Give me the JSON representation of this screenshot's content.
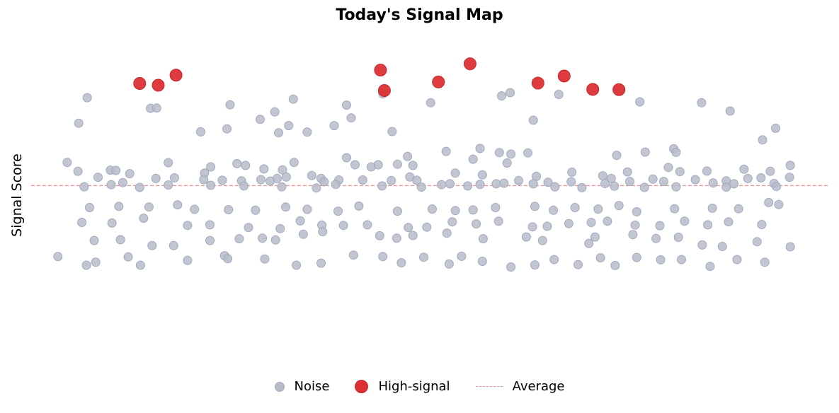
{
  "chart_data": {
    "type": "scatter",
    "title": "Today's Signal Map",
    "xlabel": "",
    "ylabel": "Signal Score",
    "xlim": [
      0,
      100
    ],
    "ylim": [
      0,
      100
    ],
    "grid": false,
    "legend_position": "bottom",
    "colors": {
      "noise": "#b7bccb",
      "high": "#dc3035",
      "average": "#e89499"
    },
    "average": 51.8,
    "series": [
      {
        "name": "Noise",
        "points": [
          [
            5.8,
            81.4
          ],
          [
            14.0,
            77.8
          ],
          [
            14.8,
            77.9
          ],
          [
            24.3,
            79.0
          ],
          [
            30.1,
            76.6
          ],
          [
            32.5,
            80.9
          ],
          [
            39.4,
            78.9
          ],
          [
            44.1,
            82.7
          ],
          [
            50.3,
            79.7
          ],
          [
            59.5,
            82.0
          ],
          [
            60.6,
            83.1
          ],
          [
            63.6,
            73.8
          ],
          [
            66.9,
            82.5
          ],
          [
            77.4,
            80.0
          ],
          [
            85.4,
            79.7
          ],
          [
            89.1,
            76.9
          ],
          [
            4.7,
            72.8
          ],
          [
            20.5,
            69.9
          ],
          [
            23.9,
            70.9
          ],
          [
            28.2,
            74.1
          ],
          [
            30.6,
            69.6
          ],
          [
            31.9,
            72.0
          ],
          [
            34.3,
            69.8
          ],
          [
            37.8,
            72.0
          ],
          [
            40.0,
            74.6
          ],
          [
            45.3,
            70.0
          ],
          [
            47.3,
            61.6
          ],
          [
            52.3,
            63.3
          ],
          [
            56.7,
            64.3
          ],
          [
            59.2,
            62.9
          ],
          [
            60.7,
            62.4
          ],
          [
            62.9,
            62.8
          ],
          [
            74.4,
            62.0
          ],
          [
            78.1,
            63.1
          ],
          [
            81.8,
            64.2
          ],
          [
            82.1,
            63.0
          ],
          [
            93.3,
            67.2
          ],
          [
            95.0,
            71.1
          ],
          [
            3.2,
            59.6
          ],
          [
            4.6,
            56.6
          ],
          [
            8.8,
            57.0
          ],
          [
            9.5,
            56.9
          ],
          [
            11.3,
            55.8
          ],
          [
            16.3,
            59.5
          ],
          [
            21.0,
            56.0
          ],
          [
            21.8,
            58.1
          ],
          [
            25.2,
            59.2
          ],
          [
            26.3,
            58.6
          ],
          [
            28.3,
            53.8
          ],
          [
            28.7,
            57.4
          ],
          [
            30.4,
            54.2
          ],
          [
            31.1,
            57.1
          ],
          [
            32.6,
            59.6
          ],
          [
            34.9,
            55.2
          ],
          [
            36.1,
            54.2
          ],
          [
            39.4,
            61.2
          ],
          [
            40.5,
            58.8
          ],
          [
            42.6,
            58.1
          ],
          [
            43.5,
            58.8
          ],
          [
            46.0,
            59.0
          ],
          [
            47.6,
            54.7
          ],
          [
            48.0,
            58.6
          ],
          [
            53.5,
            56.0
          ],
          [
            55.8,
            60.7
          ],
          [
            57.0,
            55.4
          ],
          [
            60.2,
            59.4
          ],
          [
            64.0,
            54.9
          ],
          [
            68.6,
            56.3
          ],
          [
            72.6,
            55.1
          ],
          [
            73.7,
            54.2
          ],
          [
            75.8,
            56.4
          ],
          [
            79.1,
            54.0
          ],
          [
            81.1,
            57.9
          ],
          [
            82.6,
            56.5
          ],
          [
            86.1,
            56.7
          ],
          [
            90.9,
            57.3
          ],
          [
            93.1,
            54.4
          ],
          [
            94.3,
            56.6
          ],
          [
            96.9,
            58.6
          ],
          [
            7.2,
            54.6
          ],
          [
            10.4,
            52.8
          ],
          [
            14.7,
            54.2
          ],
          [
            17.1,
            54.4
          ],
          [
            20.9,
            53.8
          ],
          [
            23.3,
            53.6
          ],
          [
            25.8,
            53.4
          ],
          [
            29.5,
            53.3
          ],
          [
            31.6,
            54.7
          ],
          [
            36.5,
            53.1
          ],
          [
            38.4,
            53.7
          ],
          [
            41.5,
            53.7
          ],
          [
            45.2,
            53.5
          ],
          [
            48.5,
            53.6
          ],
          [
            52.8,
            52.4
          ],
          [
            56.7,
            52.2
          ],
          [
            58.8,
            52.4
          ],
          [
            61.7,
            53.5
          ],
          [
            65.5,
            52.9
          ],
          [
            68.5,
            53.1
          ],
          [
            72.9,
            52.5
          ],
          [
            76.1,
            53.2
          ],
          [
            80.5,
            53.2
          ],
          [
            84.6,
            53.8
          ],
          [
            86.9,
            52.7
          ],
          [
            88.6,
            53.4
          ],
          [
            91.4,
            54.2
          ],
          [
            94.8,
            52.5
          ],
          [
            96.8,
            54.6
          ],
          [
            5.4,
            51.4
          ],
          [
            8.9,
            52.1
          ],
          [
            12.6,
            51.2
          ],
          [
            16.3,
            52.0
          ],
          [
            21.8,
            51.9
          ],
          [
            26.1,
            51.7
          ],
          [
            31.0,
            51.4
          ],
          [
            35.5,
            51.0
          ],
          [
            38.0,
            52.2
          ],
          [
            44.0,
            51.7
          ],
          [
            49.1,
            51.3
          ],
          [
            51.7,
            52.1
          ],
          [
            55.1,
            51.7
          ],
          [
            59.8,
            52.6
          ],
          [
            63.6,
            52.4
          ],
          [
            66.4,
            51.4
          ],
          [
            69.9,
            51.1
          ],
          [
            74.1,
            51.6
          ],
          [
            78.0,
            51.2
          ],
          [
            82.1,
            51.4
          ],
          [
            88.6,
            51.3
          ],
          [
            89.6,
            52.4
          ],
          [
            95.1,
            51.5
          ],
          [
            6.1,
            44.4
          ],
          [
            9.9,
            44.8
          ],
          [
            13.8,
            44.6
          ],
          [
            17.5,
            45.3
          ],
          [
            19.7,
            43.8
          ],
          [
            24.1,
            43.7
          ],
          [
            27.6,
            43.5
          ],
          [
            31.5,
            44.6
          ],
          [
            34.3,
            43.8
          ],
          [
            38.3,
            43.2
          ],
          [
            41.0,
            44.9
          ],
          [
            46.0,
            43.2
          ],
          [
            50.5,
            43.9
          ],
          [
            53.5,
            43.4
          ],
          [
            55.8,
            43.6
          ],
          [
            58.7,
            44.4
          ],
          [
            63.8,
            44.8
          ],
          [
            66.2,
            43.5
          ],
          [
            69.0,
            44.4
          ],
          [
            72.0,
            43.9
          ],
          [
            74.7,
            45.1
          ],
          [
            77.0,
            43.0
          ],
          [
            81.9,
            44.0
          ],
          [
            86.8,
            44.2
          ],
          [
            90.2,
            44.0
          ],
          [
            94.1,
            46.1
          ],
          [
            95.4,
            45.4
          ],
          [
            5.1,
            39.4
          ],
          [
            9.0,
            39.2
          ],
          [
            13.1,
            40.8
          ],
          [
            18.8,
            38.4
          ],
          [
            21.7,
            38.6
          ],
          [
            26.7,
            37.7
          ],
          [
            30.8,
            37.3
          ],
          [
            33.4,
            39.9
          ],
          [
            36.2,
            38.5
          ],
          [
            39.0,
            38.4
          ],
          [
            42.1,
            38.6
          ],
          [
            47.4,
            37.7
          ],
          [
            49.8,
            37.8
          ],
          [
            53.1,
            39.6
          ],
          [
            56.2,
            38.9
          ],
          [
            59.1,
            39.8
          ],
          [
            63.5,
            37.9
          ],
          [
            65.4,
            38.1
          ],
          [
            68.2,
            39.0
          ],
          [
            71.1,
            39.4
          ],
          [
            73.2,
            39.8
          ],
          [
            76.8,
            38.5
          ],
          [
            80.0,
            38.3
          ],
          [
            83.2,
            39.8
          ],
          [
            86.2,
            38.6
          ],
          [
            88.9,
            39.6
          ],
          [
            93.2,
            38.7
          ],
          [
            6.7,
            33.3
          ],
          [
            10.1,
            33.6
          ],
          [
            14.2,
            31.6
          ],
          [
            17.0,
            31.6
          ],
          [
            21.7,
            33.3
          ],
          [
            25.5,
            33.9
          ],
          [
            28.5,
            34.1
          ],
          [
            30.2,
            33.5
          ],
          [
            33.8,
            35.4
          ],
          [
            36.3,
            36.3
          ],
          [
            43.7,
            34.9
          ],
          [
            45.9,
            34.1
          ],
          [
            48.0,
            35.0
          ],
          [
            52.4,
            35.8
          ],
          [
            57.1,
            33.9
          ],
          [
            62.7,
            34.5
          ],
          [
            64.8,
            33.3
          ],
          [
            70.8,
            32.3
          ],
          [
            71.6,
            34.5
          ],
          [
            76.5,
            35.3
          ],
          [
            79.5,
            34.0
          ],
          [
            82.4,
            34.4
          ],
          [
            85.5,
            31.8
          ],
          [
            88.1,
            31.3
          ],
          [
            92.6,
            32.9
          ],
          [
            96.9,
            31.2
          ],
          [
            2.0,
            27.9
          ],
          [
            5.7,
            25.0
          ],
          [
            6.9,
            26.0
          ],
          [
            11.1,
            27.8
          ],
          [
            12.7,
            25.0
          ],
          [
            18.8,
            26.6
          ],
          [
            23.6,
            28.2
          ],
          [
            24.0,
            27.2
          ],
          [
            28.8,
            27.1
          ],
          [
            32.9,
            25.0
          ],
          [
            36.1,
            25.7
          ],
          [
            40.3,
            28.4
          ],
          [
            44.1,
            27.9
          ],
          [
            46.5,
            25.8
          ],
          [
            49.4,
            27.7
          ],
          [
            52.7,
            25.4
          ],
          [
            54.3,
            28.0
          ],
          [
            57.0,
            26.3
          ],
          [
            60.7,
            24.4
          ],
          [
            63.8,
            25.1
          ],
          [
            66.3,
            26.9
          ],
          [
            69.4,
            25.2
          ],
          [
            72.3,
            27.5
          ],
          [
            74.2,
            24.9
          ],
          [
            77.0,
            27.6
          ],
          [
            80.1,
            26.8
          ],
          [
            82.8,
            26.9
          ],
          [
            86.5,
            24.6
          ],
          [
            90.0,
            26.9
          ],
          [
            93.6,
            26.0
          ]
        ]
      },
      {
        "name": "High-signal",
        "points": [
          [
            12.6,
            86.2
          ],
          [
            15.0,
            85.6
          ],
          [
            17.3,
            89.0
          ],
          [
            43.8,
            90.7
          ],
          [
            44.3,
            83.8
          ],
          [
            51.3,
            86.7
          ],
          [
            55.4,
            92.8
          ],
          [
            64.2,
            86.3
          ],
          [
            67.6,
            88.7
          ],
          [
            71.3,
            84.2
          ],
          [
            74.7,
            84.1
          ]
        ]
      }
    ],
    "legend": [
      {
        "label": "Noise",
        "series": "Noise"
      },
      {
        "label": "High-signal",
        "series": "High-signal"
      },
      {
        "label": "Average",
        "series": "average"
      }
    ]
  }
}
